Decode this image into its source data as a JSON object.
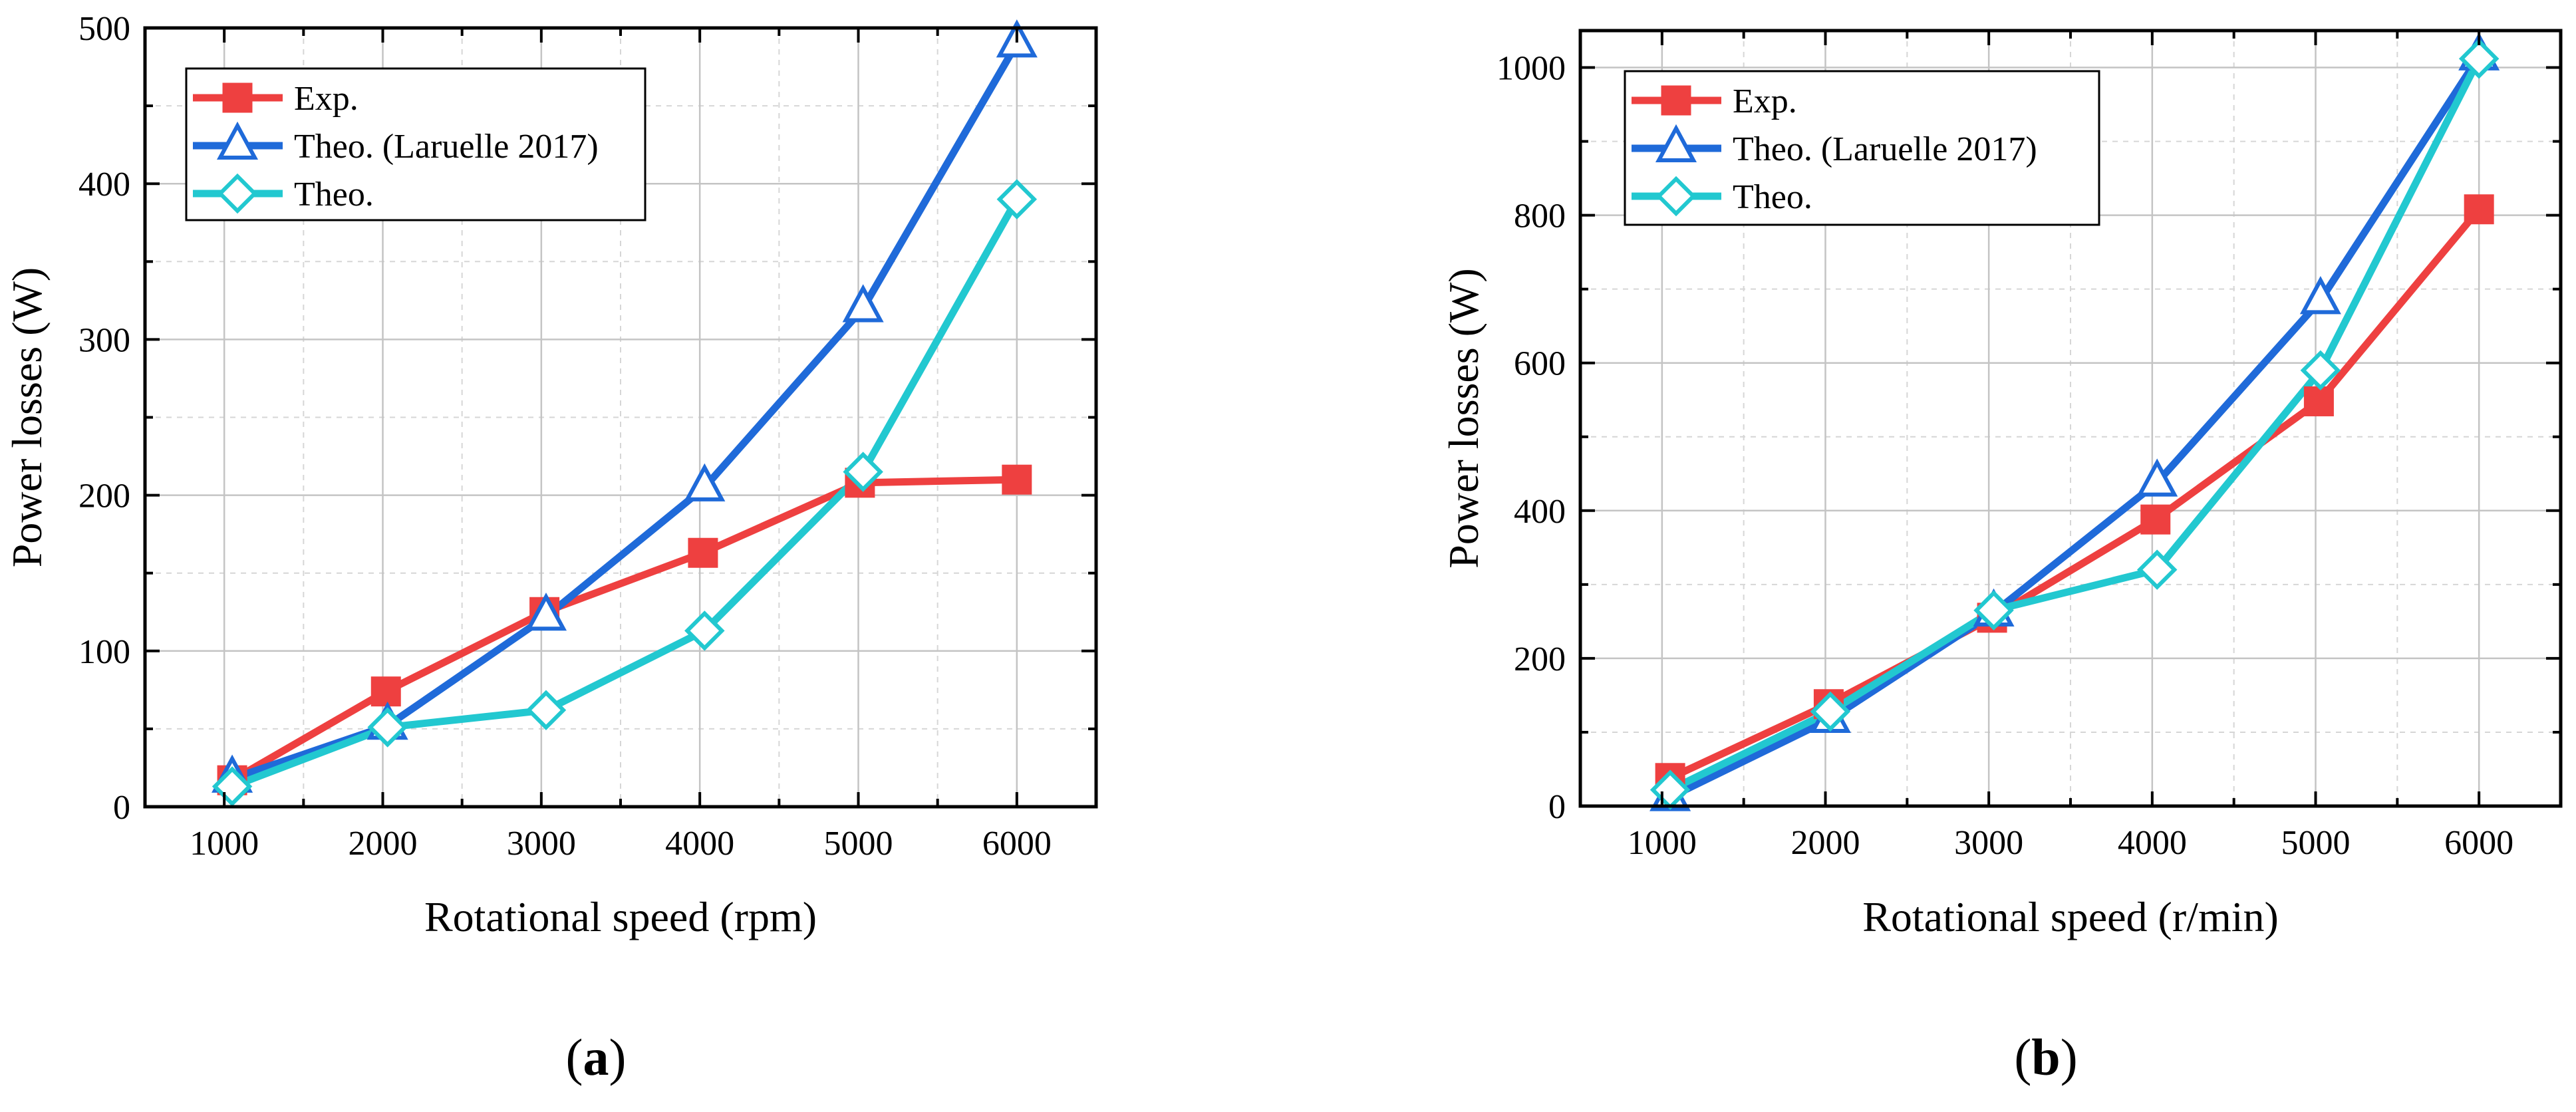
{
  "chart_data": [
    {
      "type": "line",
      "panel": "a",
      "xlabel": "Rotational speed (rpm)",
      "ylabel": "Power losses (W)",
      "xlim": [
        500,
        6500
      ],
      "ylim": [
        0,
        500
      ],
      "xticks": [
        1000,
        2000,
        3000,
        4000,
        5000,
        6000
      ],
      "yticks": [
        0,
        100,
        200,
        300,
        400,
        500
      ],
      "grid": true,
      "legend_position": "top-left",
      "series": [
        {
          "name": "Exp.",
          "color": "#ee4040",
          "marker": "square",
          "x": [
            1050,
            2020,
            3020,
            4020,
            5010,
            6000
          ],
          "y": [
            17,
            74,
            125,
            163,
            208,
            210
          ]
        },
        {
          "name": "Theo. (Laruelle 2017)",
          "color": "#1f6ad9",
          "marker": "triangle",
          "x": [
            1050,
            2030,
            3030,
            4030,
            5030,
            6000
          ],
          "y": [
            18,
            52,
            122,
            205,
            320,
            490
          ]
        },
        {
          "name": "Theo.",
          "color": "#22c8d0",
          "marker": "diamond",
          "x": [
            1050,
            2030,
            3030,
            4030,
            5030,
            6000
          ],
          "y": [
            13,
            51,
            62,
            113,
            215,
            390
          ]
        }
      ]
    },
    {
      "type": "line",
      "panel": "b",
      "xlabel": "Rotational speed (r/min)",
      "ylabel": "Power losses (W)",
      "xlim": [
        500,
        6500
      ],
      "ylim": [
        0,
        1050
      ],
      "xticks": [
        1000,
        2000,
        3000,
        4000,
        5000,
        6000
      ],
      "yticks": [
        0,
        200,
        400,
        600,
        800,
        1000
      ],
      "grid": true,
      "legend_position": "top-left",
      "series": [
        {
          "name": "Exp.",
          "color": "#ee4040",
          "marker": "square",
          "x": [
            1050,
            2020,
            3020,
            4020,
            5020,
            6000
          ],
          "y": [
            38,
            138,
            255,
            388,
            548,
            808
          ]
        },
        {
          "name": "Theo. (Laruelle 2017)",
          "color": "#1f6ad9",
          "marker": "triangle",
          "x": [
            1050,
            2030,
            3030,
            4030,
            5030,
            6000
          ],
          "y": [
            12,
            118,
            262,
            438,
            685,
            1015
          ]
        },
        {
          "name": "Theo.",
          "color": "#22c8d0",
          "marker": "diamond",
          "x": [
            1050,
            2030,
            3030,
            4030,
            5030,
            6000
          ],
          "y": [
            22,
            128,
            265,
            320,
            590,
            1012
          ]
        }
      ]
    }
  ],
  "labels": {
    "panel_a_letter": "a",
    "panel_b_letter": "b",
    "open_paren": "(",
    "close_paren": ")"
  }
}
